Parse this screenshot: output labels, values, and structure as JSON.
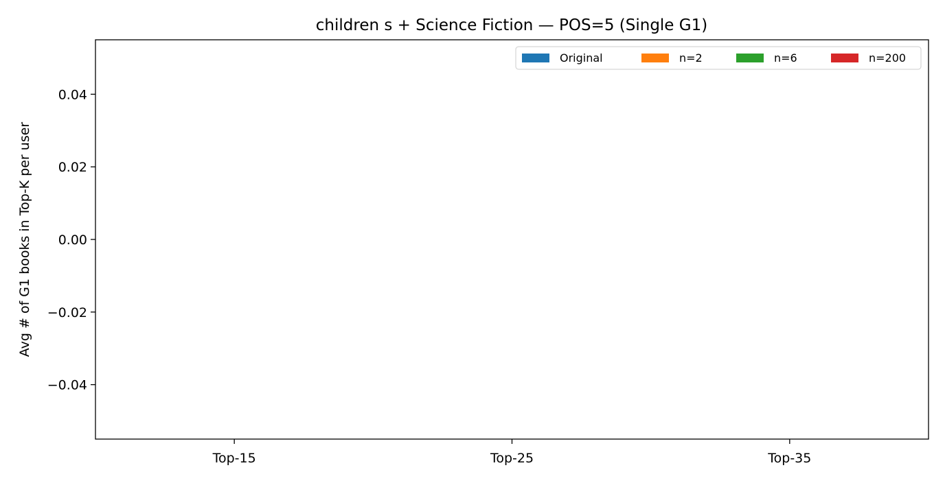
{
  "chart_data": {
    "type": "bar",
    "title": "children s + Science Fiction — POS=5 (Single G1)",
    "xlabel": "",
    "ylabel": "Avg # of G1 books in Top-K per user",
    "categories": [
      "Top-15",
      "Top-25",
      "Top-35"
    ],
    "series": [
      {
        "name": "Original",
        "color": "#1f77b4",
        "values": [
          0,
          0,
          0
        ]
      },
      {
        "name": "n=2",
        "color": "#ff7f0e",
        "values": [
          0,
          0,
          0
        ]
      },
      {
        "name": "n=6",
        "color": "#2ca02c",
        "values": [
          0,
          0,
          0
        ]
      },
      {
        "name": "n=200",
        "color": "#d62728",
        "values": [
          0,
          0,
          0
        ]
      }
    ],
    "ylim": [
      -0.055,
      0.055
    ],
    "yticks": [
      -0.04,
      -0.02,
      0.0,
      0.02,
      0.04
    ],
    "ytick_labels": [
      "−0.04",
      "−0.02",
      "0.00",
      "0.02",
      "0.04"
    ],
    "grid": false,
    "legend_position": "top-right",
    "legend_columns": 4
  }
}
